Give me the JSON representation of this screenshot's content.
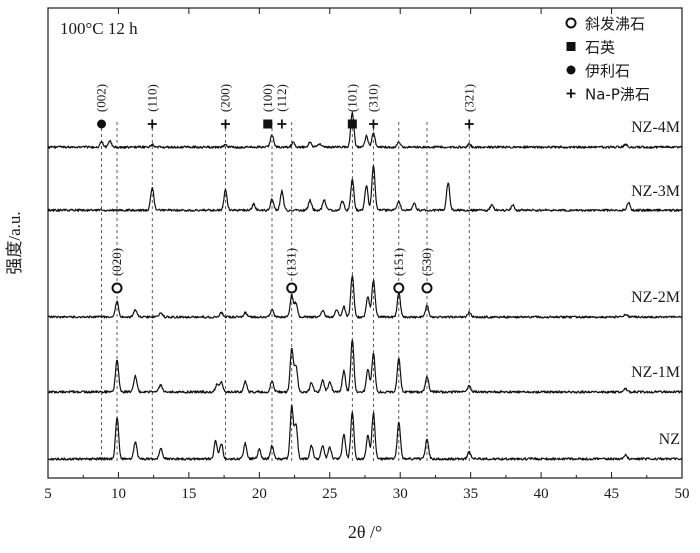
{
  "chart_data": {
    "type": "line",
    "condition_label": "100°C 12 h",
    "xlabel": "2θ /°",
    "ylabel": "强度/a.u.",
    "xlim": [
      5,
      50
    ],
    "x_ticks": [
      5,
      10,
      15,
      20,
      25,
      30,
      35,
      40,
      45,
      50
    ],
    "grid": false,
    "y_ticks_labeled": false,
    "legend_position": "top-right",
    "legend": [
      {
        "marker": "open-circle",
        "label": "斜发沸石"
      },
      {
        "marker": "filled-square",
        "label": "石英"
      },
      {
        "marker": "filled-circle",
        "label": "伊利石"
      },
      {
        "marker": "plus",
        "label": "Na-P沸石"
      }
    ],
    "series_order_top_to_bottom": [
      "NZ-4M",
      "NZ-3M",
      "NZ-2M",
      "NZ-1M",
      "NZ"
    ],
    "series": [
      {
        "name": "NZ-4M",
        "baseline": 0.05,
        "peaks": [
          [
            8.8,
            0.1
          ],
          [
            9.4,
            0.12
          ],
          [
            12.4,
            0.05
          ],
          [
            17.6,
            0.05
          ],
          [
            20.9,
            0.24
          ],
          [
            22.4,
            0.09
          ],
          [
            23.6,
            0.1
          ],
          [
            24.3,
            0.07
          ],
          [
            26.6,
            0.7
          ],
          [
            27.6,
            0.22
          ],
          [
            28.1,
            0.28
          ],
          [
            29.9,
            0.1
          ],
          [
            34.9,
            0.06
          ],
          [
            46.0,
            0.05
          ]
        ]
      },
      {
        "name": "NZ-3M",
        "baseline": 0.1,
        "peaks": [
          [
            12.4,
            0.46
          ],
          [
            17.6,
            0.4
          ],
          [
            19.6,
            0.12
          ],
          [
            20.9,
            0.22
          ],
          [
            21.6,
            0.38
          ],
          [
            23.6,
            0.2
          ],
          [
            24.6,
            0.2
          ],
          [
            25.9,
            0.18
          ],
          [
            26.6,
            0.6
          ],
          [
            27.6,
            0.5
          ],
          [
            28.1,
            0.9
          ],
          [
            29.9,
            0.18
          ],
          [
            31.0,
            0.14
          ],
          [
            33.4,
            0.55
          ],
          [
            36.5,
            0.1
          ],
          [
            38.0,
            0.1
          ],
          [
            46.2,
            0.16
          ]
        ]
      },
      {
        "name": "NZ-2M",
        "baseline": 0.06,
        "peaks": [
          [
            9.9,
            0.34
          ],
          [
            11.2,
            0.16
          ],
          [
            13.0,
            0.1
          ],
          [
            17.3,
            0.1
          ],
          [
            19.0,
            0.1
          ],
          [
            20.9,
            0.15
          ],
          [
            22.3,
            0.48
          ],
          [
            22.6,
            0.3
          ],
          [
            24.5,
            0.14
          ],
          [
            25.5,
            0.16
          ],
          [
            26.0,
            0.22
          ],
          [
            26.6,
            0.9
          ],
          [
            27.7,
            0.45
          ],
          [
            28.1,
            0.8
          ],
          [
            29.9,
            0.52
          ],
          [
            31.9,
            0.25
          ],
          [
            34.9,
            0.1
          ],
          [
            46.0,
            0.05
          ]
        ]
      },
      {
        "name": "NZ-1M",
        "baseline": 0.06,
        "peaks": [
          [
            9.9,
            0.62
          ],
          [
            11.2,
            0.3
          ],
          [
            13.0,
            0.14
          ],
          [
            17.0,
            0.15
          ],
          [
            17.3,
            0.18
          ],
          [
            19.0,
            0.2
          ],
          [
            20.9,
            0.22
          ],
          [
            22.3,
            0.82
          ],
          [
            22.6,
            0.5
          ],
          [
            23.7,
            0.18
          ],
          [
            24.5,
            0.22
          ],
          [
            25.0,
            0.2
          ],
          [
            26.0,
            0.4
          ],
          [
            26.6,
            1.0
          ],
          [
            27.7,
            0.45
          ],
          [
            28.1,
            0.75
          ],
          [
            29.9,
            0.65
          ],
          [
            31.9,
            0.3
          ],
          [
            34.9,
            0.12
          ],
          [
            46.0,
            0.06
          ]
        ]
      },
      {
        "name": "NZ",
        "baseline": 0.06,
        "peaks": [
          [
            9.9,
            0.8
          ],
          [
            11.2,
            0.32
          ],
          [
            13.0,
            0.2
          ],
          [
            16.9,
            0.34
          ],
          [
            17.3,
            0.3
          ],
          [
            19.0,
            0.3
          ],
          [
            20.0,
            0.18
          ],
          [
            20.9,
            0.25
          ],
          [
            22.3,
            1.0
          ],
          [
            22.6,
            0.65
          ],
          [
            23.7,
            0.25
          ],
          [
            24.5,
            0.25
          ],
          [
            25.0,
            0.22
          ],
          [
            26.0,
            0.48
          ],
          [
            26.6,
            0.9
          ],
          [
            27.7,
            0.45
          ],
          [
            28.1,
            0.88
          ],
          [
            29.9,
            0.7
          ],
          [
            31.9,
            0.38
          ],
          [
            34.9,
            0.14
          ],
          [
            46.0,
            0.08
          ]
        ]
      }
    ],
    "annotations": [
      {
        "x": 8.8,
        "label": "(002)",
        "marker": "filled-circle"
      },
      {
        "x": 12.4,
        "label": "(110)",
        "marker": "plus"
      },
      {
        "x": 17.6,
        "label": "(200)",
        "marker": "plus"
      },
      {
        "x": 20.6,
        "label": "(100)",
        "marker": "filled-square"
      },
      {
        "x": 21.6,
        "label": "(112)",
        "marker": "plus"
      },
      {
        "x": 26.6,
        "label": "(101)",
        "marker": "filled-square"
      },
      {
        "x": 28.1,
        "label": "(310)",
        "marker": "plus"
      },
      {
        "x": 34.9,
        "label": "(321)",
        "marker": "plus"
      },
      {
        "x": 9.9,
        "label": "(020)",
        "marker": "open-circle"
      },
      {
        "x": 22.3,
        "label": "(131)",
        "marker": "open-circle"
      },
      {
        "x": 29.9,
        "label": "(151)",
        "marker": "open-circle"
      },
      {
        "x": 31.9,
        "label": "(530)",
        "marker": "open-circle"
      }
    ],
    "dashed_reference_lines_x": [
      8.8,
      9.9,
      12.4,
      17.6,
      20.9,
      22.3,
      26.6,
      28.1,
      29.9,
      31.9,
      34.9
    ]
  }
}
